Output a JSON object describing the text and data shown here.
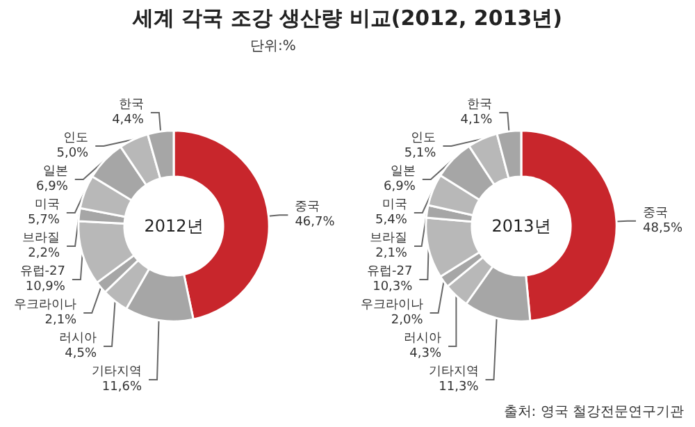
{
  "chart_data": [
    {
      "type": "donut",
      "title": "세계 각국 조강 생산량 비교(2012, 2013년)",
      "subtitle": "단위:%",
      "annotations": [
        "2012년"
      ],
      "categories": [
        "중국",
        "기타지역",
        "러시아",
        "우크라이나",
        "유럽-27",
        "브라질",
        "미국",
        "일본",
        "인도",
        "한국"
      ],
      "values": [
        46.7,
        11.6,
        4.5,
        2.1,
        10.9,
        2.2,
        5.7,
        6.9,
        5.0,
        4.4
      ],
      "value_labels": [
        "46,7%",
        "11,6%",
        "4,5%",
        "2,1%",
        "10,9%",
        "2,2%",
        "5,7%",
        "6,9%",
        "5,0%",
        "4,4%"
      ],
      "colors": [
        "#c8262c",
        "#a6a6a6",
        "#b8b8b8",
        "#a6a6a6",
        "#b8b8b8",
        "#a6a6a6",
        "#b8b8b8",
        "#a6a6a6",
        "#b8b8b8",
        "#a6a6a6"
      ]
    },
    {
      "type": "donut",
      "annotations": [
        "2013년",
        "출처: 영국 철강전문연구기관"
      ],
      "categories": [
        "중국",
        "기타지역",
        "러시아",
        "우크라이나",
        "유럽-27",
        "브라질",
        "미국",
        "일본",
        "인도",
        "한국"
      ],
      "values": [
        48.5,
        11.3,
        4.3,
        2.0,
        10.3,
        2.1,
        5.4,
        6.9,
        5.1,
        4.1
      ],
      "value_labels": [
        "48,5%",
        "11,3%",
        "4,3%",
        "2,0%",
        "10,3%",
        "2,1%",
        "5,4%",
        "6,9%",
        "5,1%",
        "4,1%"
      ],
      "colors": [
        "#c8262c",
        "#a6a6a6",
        "#b8b8b8",
        "#a6a6a6",
        "#b8b8b8",
        "#a6a6a6",
        "#b8b8b8",
        "#a6a6a6",
        "#b8b8b8",
        "#a6a6a6"
      ]
    }
  ]
}
